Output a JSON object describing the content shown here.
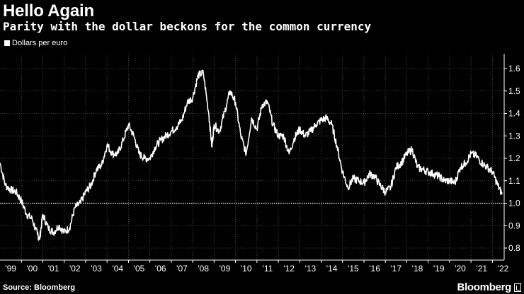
{
  "header": {
    "title": "Hello Again",
    "subtitle": "Parity with the dollar beckons for the common currency"
  },
  "footer": {
    "source": "Source: Bloomberg",
    "brand": "Bloomberg"
  },
  "colors": {
    "background": "#000000",
    "line": "#ffffff",
    "grid": "#555555",
    "reference": "#ffffff"
  },
  "chart_data": {
    "type": "line",
    "title": "Hello Again",
    "subtitle": "Parity with the dollar beckons for the common currency",
    "xlabel": "",
    "ylabel": "",
    "legend": {
      "entries": [
        "Dollars per euro"
      ],
      "placement": "top-left"
    },
    "grid": true,
    "y_axis_position": "right",
    "xlim": [
      1999.0,
      2022.55
    ],
    "ylim": [
      0.8,
      1.6
    ],
    "x_ticks": [
      {
        "label": "'99",
        "value": 1999.5
      },
      {
        "label": "'00",
        "value": 2000.5
      },
      {
        "label": "'01",
        "value": 2001.5
      },
      {
        "label": "'02",
        "value": 2002.5
      },
      {
        "label": "'03",
        "value": 2003.5
      },
      {
        "label": "'04",
        "value": 2004.5
      },
      {
        "label": "'05",
        "value": 2005.5
      },
      {
        "label": "'06",
        "value": 2006.5
      },
      {
        "label": "'07",
        "value": 2007.5
      },
      {
        "label": "'08",
        "value": 2008.5
      },
      {
        "label": "'09",
        "value": 2009.5
      },
      {
        "label": "'10",
        "value": 2010.5
      },
      {
        "label": "'11",
        "value": 2011.5
      },
      {
        "label": "'12",
        "value": 2012.5
      },
      {
        "label": "'13",
        "value": 2013.5
      },
      {
        "label": "'14",
        "value": 2014.5
      },
      {
        "label": "'15",
        "value": 2015.5
      },
      {
        "label": "'16",
        "value": 2016.5
      },
      {
        "label": "'17",
        "value": 2017.5
      },
      {
        "label": "'18",
        "value": 2018.5
      },
      {
        "label": "'19",
        "value": 2019.5
      },
      {
        "label": "'20",
        "value": 2020.5
      },
      {
        "label": "'21",
        "value": 2021.5
      },
      {
        "label": "'22",
        "value": 2022.5
      }
    ],
    "y_ticks": [
      {
        "label": "0.8",
        "value": 0.8
      },
      {
        "label": "0.9",
        "value": 0.9
      },
      {
        "label": "1.0",
        "value": 1.0
      },
      {
        "label": "1.1",
        "value": 1.1
      },
      {
        "label": "1.2",
        "value": 1.2
      },
      {
        "label": "1.3",
        "value": 1.3
      },
      {
        "label": "1.4",
        "value": 1.4
      },
      {
        "label": "1.5",
        "value": 1.5
      },
      {
        "label": "1.6",
        "value": 1.6
      }
    ],
    "reference_line": {
      "y": 1.0,
      "style": "dotted"
    },
    "series": [
      {
        "name": "Dollars per euro",
        "x": [
          1999.0,
          1999.25,
          1999.5,
          1999.75,
          2000.0,
          2000.25,
          2000.5,
          2000.75,
          2000.85,
          2001.0,
          2001.25,
          2001.5,
          2001.75,
          2002.0,
          2002.25,
          2002.5,
          2002.75,
          2003.0,
          2003.25,
          2003.5,
          2003.75,
          2004.0,
          2004.25,
          2004.5,
          2004.75,
          2005.0,
          2005.25,
          2005.5,
          2005.75,
          2006.0,
          2006.25,
          2006.5,
          2006.75,
          2007.0,
          2007.25,
          2007.5,
          2007.75,
          2008.0,
          2008.25,
          2008.5,
          2008.75,
          2008.9,
          2009.0,
          2009.25,
          2009.5,
          2009.75,
          2010.0,
          2010.25,
          2010.5,
          2010.75,
          2011.0,
          2011.25,
          2011.5,
          2011.75,
          2012.0,
          2012.25,
          2012.5,
          2012.75,
          2013.0,
          2013.25,
          2013.5,
          2013.75,
          2014.0,
          2014.25,
          2014.5,
          2014.75,
          2015.0,
          2015.25,
          2015.5,
          2015.75,
          2016.0,
          2016.25,
          2016.5,
          2016.75,
          2017.0,
          2017.25,
          2017.5,
          2017.75,
          2018.0,
          2018.25,
          2018.5,
          2018.75,
          2019.0,
          2019.25,
          2019.5,
          2019.75,
          2020.0,
          2020.25,
          2020.5,
          2020.75,
          2021.0,
          2021.25,
          2021.5,
          2021.75,
          2022.0,
          2022.25,
          2022.45
        ],
        "y": [
          1.18,
          1.08,
          1.06,
          1.05,
          1.01,
          0.95,
          0.93,
          0.86,
          0.84,
          0.95,
          0.89,
          0.87,
          0.9,
          0.87,
          0.89,
          0.98,
          1.0,
          1.05,
          1.08,
          1.15,
          1.17,
          1.26,
          1.22,
          1.22,
          1.28,
          1.35,
          1.3,
          1.22,
          1.2,
          1.2,
          1.25,
          1.28,
          1.3,
          1.32,
          1.34,
          1.37,
          1.45,
          1.47,
          1.57,
          1.58,
          1.4,
          1.25,
          1.35,
          1.32,
          1.41,
          1.5,
          1.45,
          1.3,
          1.22,
          1.38,
          1.33,
          1.44,
          1.45,
          1.35,
          1.3,
          1.3,
          1.22,
          1.29,
          1.33,
          1.3,
          1.32,
          1.35,
          1.37,
          1.38,
          1.35,
          1.25,
          1.14,
          1.07,
          1.11,
          1.1,
          1.09,
          1.13,
          1.12,
          1.08,
          1.05,
          1.07,
          1.16,
          1.18,
          1.22,
          1.24,
          1.16,
          1.15,
          1.14,
          1.13,
          1.12,
          1.1,
          1.1,
          1.09,
          1.16,
          1.18,
          1.22,
          1.21,
          1.18,
          1.16,
          1.14,
          1.08,
          1.04
        ]
      }
    ]
  }
}
